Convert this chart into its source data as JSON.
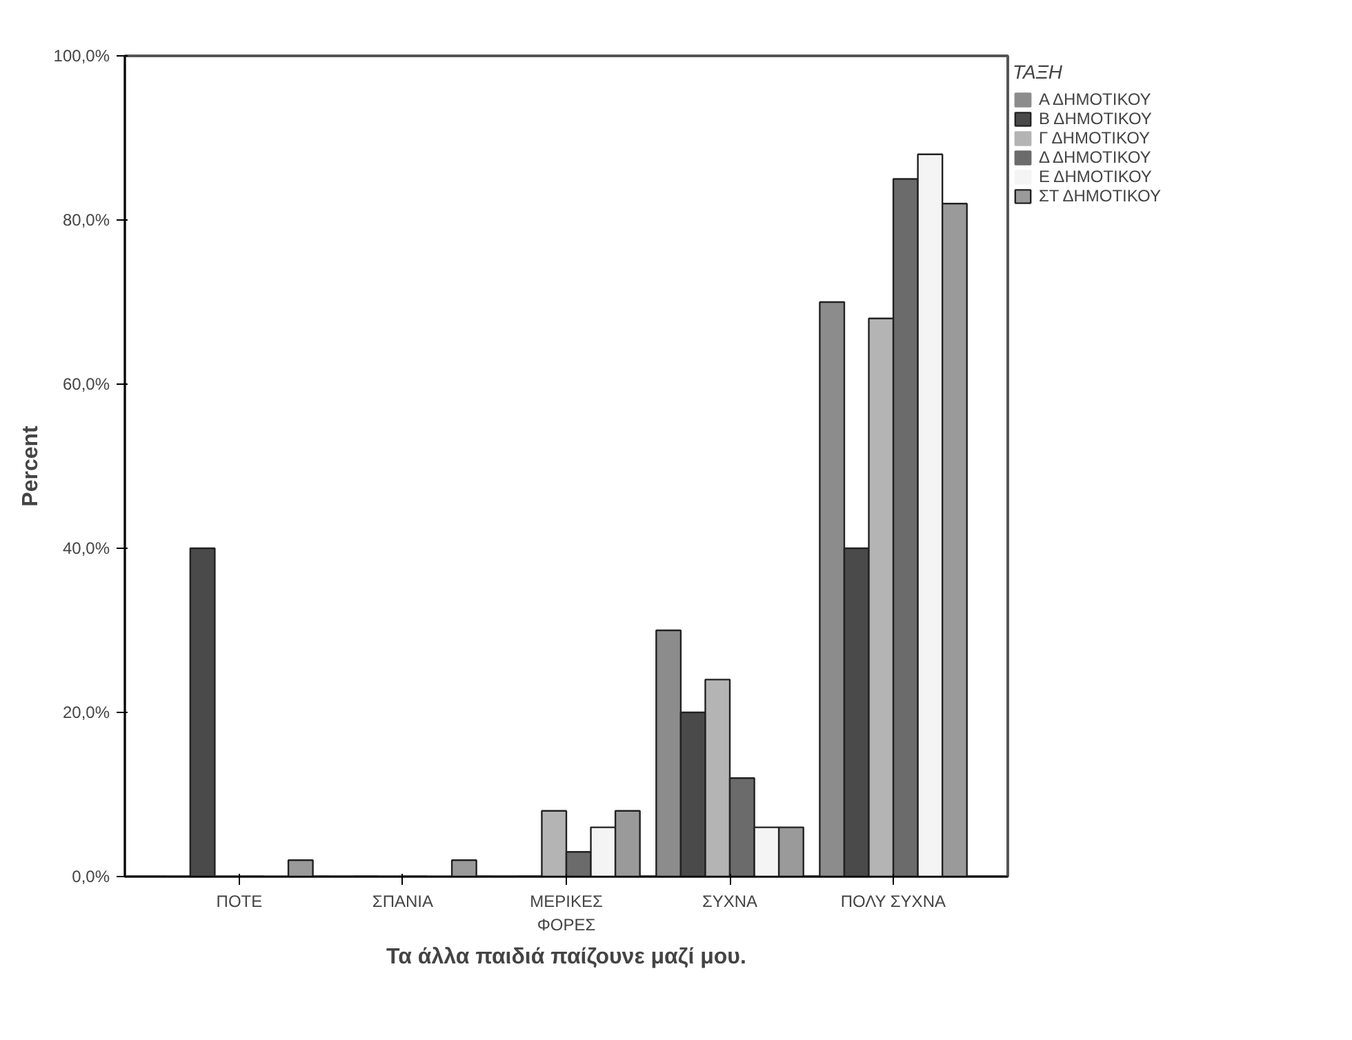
{
  "chart_data": {
    "type": "bar",
    "xlabel": "Τα άλλα παιδιά παίζουνε μαζί μου.",
    "ylabel": "Percent",
    "legend_title": "ΤΑΞΗ",
    "categories": [
      "ΠΟΤΕ",
      "ΣΠΑΝΙΑ",
      "ΜΕΡΙΚΕΣ\nΦΟΡΕΣ",
      "ΣΥΧΝΑ",
      "ΠΟΛΥ ΣΥΧΝΑ"
    ],
    "series": [
      {
        "name": "Α ΔΗΜΟΤΙΚΟΥ",
        "color": "#8c8c8c",
        "values": [
          0,
          0,
          0,
          30,
          70
        ]
      },
      {
        "name": "Β ΔΗΜΟΤΙΚΟΥ",
        "color": "#4a4a4a",
        "values": [
          40,
          0,
          0,
          20,
          40
        ]
      },
      {
        "name": "Γ ΔΗΜΟΤΙΚΟΥ",
        "color": "#b4b4b4",
        "values": [
          0,
          0,
          8,
          24,
          68
        ]
      },
      {
        "name": "Δ ΔΗΜΟΤΙΚΟΥ",
        "color": "#6b6b6b",
        "values": [
          0,
          0,
          3,
          12,
          85
        ]
      },
      {
        "name": "Ε ΔΗΜΟΤΙΚΟΥ",
        "color": "#f4f4f4",
        "values": [
          0,
          0,
          6,
          6,
          88
        ]
      },
      {
        "name": "ΣΤ ΔΗΜΟΤΙΚΟΥ",
        "color": "#9a9a9a",
        "values": [
          2,
          2,
          8,
          6,
          82
        ]
      }
    ],
    "ylim": [
      0,
      100
    ],
    "yticks": [
      {
        "value": 0,
        "label": "0,0%"
      },
      {
        "value": 20,
        "label": "20,0%"
      },
      {
        "value": 40,
        "label": "40,0%"
      },
      {
        "value": 60,
        "label": "60,0%"
      },
      {
        "value": 80,
        "label": "80,0%"
      },
      {
        "value": 100,
        "label": "100,0%"
      }
    ],
    "grid": false,
    "legend": "top right"
  }
}
